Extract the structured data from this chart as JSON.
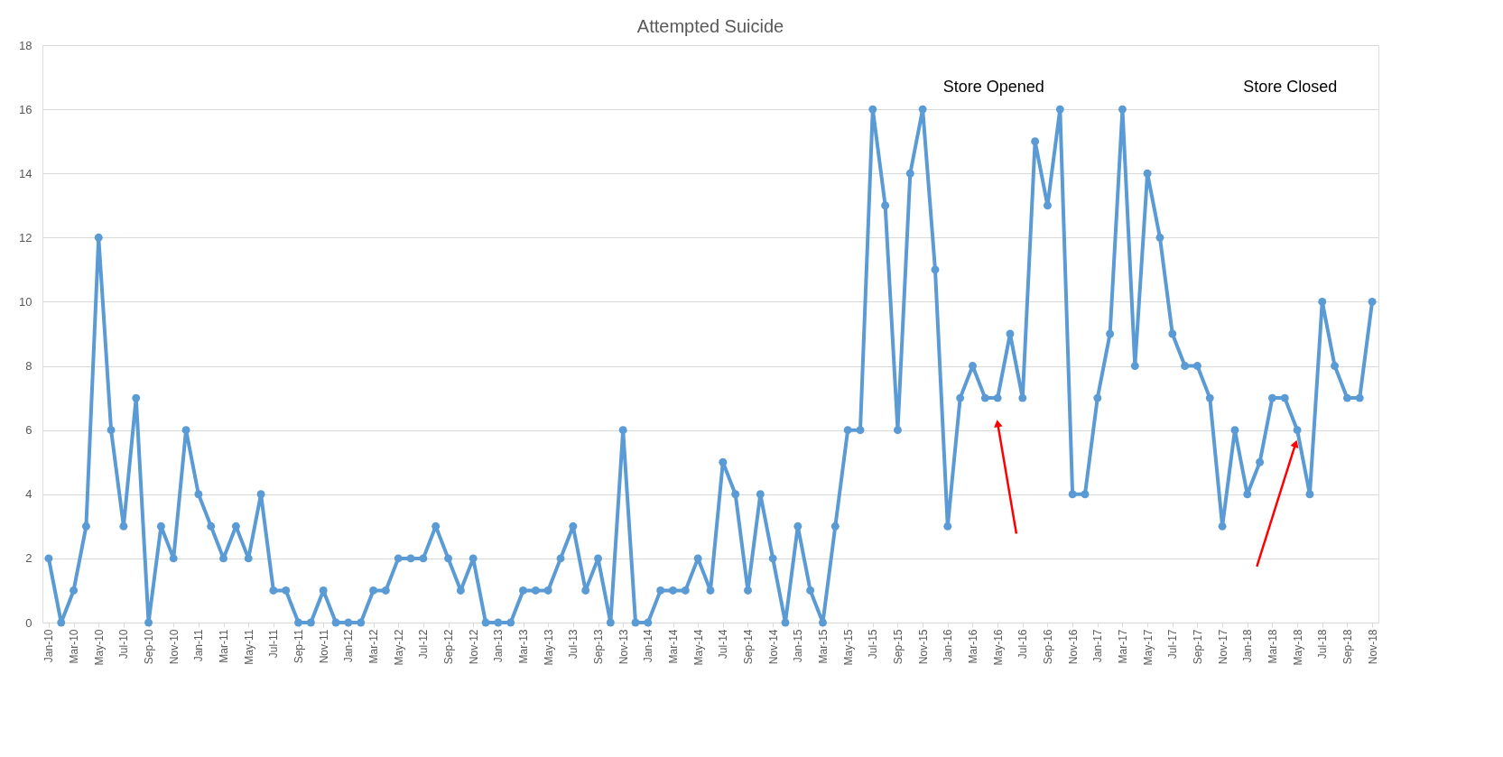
{
  "chart_data": {
    "type": "line",
    "title": "Attempted Suicide",
    "categories": [
      "Jan-10",
      null,
      "Mar-10",
      null,
      "May-10",
      null,
      "Jul-10",
      null,
      "Sep-10",
      null,
      "Nov-10",
      null,
      "Jan-11",
      null,
      "Mar-11",
      null,
      "May-11",
      null,
      "Jul-11",
      null,
      "Sep-11",
      null,
      "Nov-11",
      null,
      "Jan-12",
      null,
      "Mar-12",
      null,
      "May-12",
      null,
      "Jul-12",
      null,
      "Sep-12",
      null,
      "Nov-12",
      null,
      "Jan-13",
      null,
      "Mar-13",
      null,
      "May-13",
      null,
      "Jul-13",
      null,
      "Sep-13",
      null,
      "Nov-13",
      null,
      "Jan-14",
      null,
      "Mar-14",
      null,
      "May-14",
      null,
      "Jul-14",
      null,
      "Sep-14",
      null,
      "Nov-14",
      null,
      "Jan-15",
      null,
      "Mar-15",
      null,
      "May-15",
      null,
      "Jul-15",
      null,
      "Sep-15",
      null,
      "Nov-15",
      null,
      "Jan-16",
      null,
      "Mar-16",
      null,
      "May-16",
      null,
      "Jul-16",
      null,
      "Sep-16",
      null,
      "Nov-16",
      null,
      "Jan-17",
      null,
      "Mar-17",
      null,
      "May-17",
      null,
      "Jul-17",
      null,
      "Sep-17",
      null,
      "Nov-17",
      null,
      "Jan-18",
      null,
      "Mar-18",
      null,
      "May-18",
      null,
      "Jul-18",
      null,
      "Sep-18",
      null,
      "Nov-18"
    ],
    "series": [
      {
        "color": "#5b9bd5",
        "values": [
          2,
          0,
          1,
          3,
          12,
          6,
          3,
          7,
          0,
          3,
          2,
          6,
          4,
          3,
          2,
          3,
          2,
          4,
          1,
          1,
          0,
          0,
          1,
          0,
          0,
          0,
          1,
          1,
          2,
          2,
          2,
          3,
          2,
          1,
          2,
          0,
          0,
          0,
          1,
          1,
          1,
          2,
          3,
          1,
          2,
          0,
          6,
          0,
          0,
          1,
          1,
          1,
          2,
          1,
          5,
          4,
          1,
          4,
          2,
          0,
          3,
          1,
          0,
          3,
          6,
          6,
          16,
          13,
          6,
          14,
          16,
          11,
          3,
          7,
          8,
          7,
          7,
          9,
          7,
          15,
          13,
          16,
          4,
          4,
          7,
          9,
          16,
          8,
          14,
          12,
          9,
          8,
          8,
          7,
          3,
          6,
          4,
          5,
          7,
          7,
          6,
          4,
          10,
          8,
          7,
          7,
          10
        ]
      }
    ],
    "annotations": [
      "Store Opened",
      "Store Closed"
    ],
    "ylim": [
      0,
      18
    ],
    "yticks": [
      0,
      2,
      4,
      6,
      8,
      10,
      12,
      14,
      16,
      18
    ],
    "grid": "y",
    "marker": "circle",
    "line_style": "solid"
  }
}
